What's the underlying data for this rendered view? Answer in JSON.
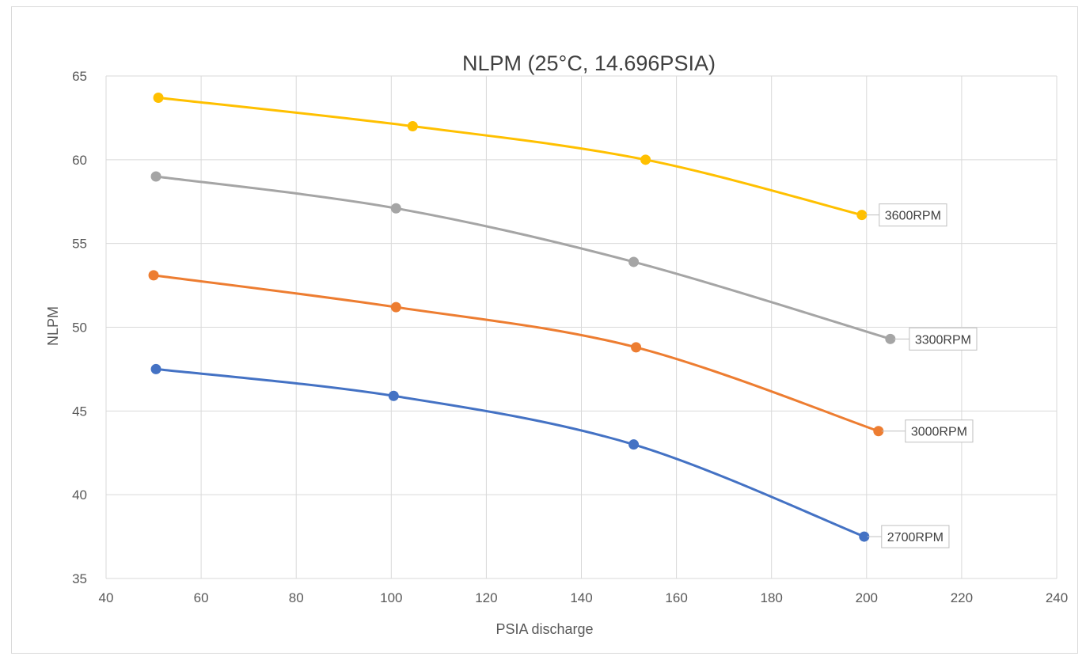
{
  "chart_data": {
    "type": "line",
    "title": "NLPM (25°C, 14.696PSIA)",
    "xlabel": "PSIA discharge",
    "ylabel": "NLPM",
    "xlim": [
      40,
      240
    ],
    "ylim": [
      35,
      65
    ],
    "x_ticks": [
      40,
      60,
      80,
      100,
      120,
      140,
      160,
      180,
      200,
      220,
      240
    ],
    "y_ticks": [
      35,
      40,
      45,
      50,
      55,
      60,
      65
    ],
    "grid": true,
    "legend": "none",
    "smooth": true,
    "series": [
      {
        "name": "2700RPM",
        "color": "#4472c4",
        "x": [
          50.5,
          100.5,
          151,
          199.5
        ],
        "y": [
          47.5,
          45.9,
          43.0,
          37.5
        ]
      },
      {
        "name": "3000RPM",
        "color": "#ed7d31",
        "x": [
          50,
          101,
          151.5,
          202.5
        ],
        "y": [
          53.1,
          51.2,
          48.8,
          43.8
        ]
      },
      {
        "name": "3300RPM",
        "color": "#a5a5a5",
        "x": [
          50.5,
          101,
          151,
          205
        ],
        "y": [
          59.0,
          57.1,
          53.9,
          49.3
        ]
      },
      {
        "name": "3600RPM",
        "color": "#ffc000",
        "x": [
          51,
          104.5,
          153.5,
          199
        ],
        "y": [
          63.7,
          62.0,
          60.0,
          56.7
        ]
      }
    ]
  }
}
